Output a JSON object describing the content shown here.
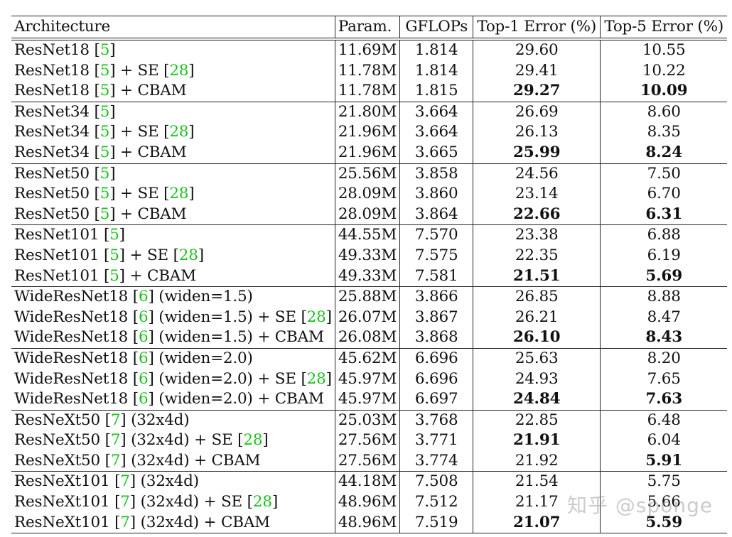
{
  "columns": [
    "Architecture",
    "Param.",
    "GFLOPs",
    "Top-1 Error (%)",
    "Top-5 Error (%)"
  ],
  "groups": [
    [
      {
        "arch": [
          "ResNet18 [",
          "5",
          "]"
        ],
        "param": "11.69M",
        "gflops": "1.814",
        "top1": "29.60",
        "top5": "10.55",
        "b1": false,
        "b5": false
      },
      {
        "arch": [
          "ResNet18 [",
          "5",
          "] + SE [",
          "28",
          "]"
        ],
        "param": "11.78M",
        "gflops": "1.814",
        "top1": "29.41",
        "top5": "10.22",
        "b1": false,
        "b5": false
      },
      {
        "arch": [
          "ResNet18 [",
          "5",
          "] + CBAM"
        ],
        "param": "11.78M",
        "gflops": "1.815",
        "top1": "29.27",
        "top5": "10.09",
        "b1": true,
        "b5": true
      }
    ],
    [
      {
        "arch": [
          "ResNet34 [",
          "5",
          "]"
        ],
        "param": "21.80M",
        "gflops": "3.664",
        "top1": "26.69",
        "top5": "8.60",
        "b1": false,
        "b5": false
      },
      {
        "arch": [
          "ResNet34 [",
          "5",
          "] + SE [",
          "28",
          "]"
        ],
        "param": "21.96M",
        "gflops": "3.664",
        "top1": "26.13",
        "top5": "8.35",
        "b1": false,
        "b5": false
      },
      {
        "arch": [
          "ResNet34 [",
          "5",
          "] + CBAM"
        ],
        "param": "21.96M",
        "gflops": "3.665",
        "top1": "25.99",
        "top5": "8.24",
        "b1": true,
        "b5": true
      }
    ],
    [
      {
        "arch": [
          "ResNet50 [",
          "5",
          "]"
        ],
        "param": "25.56M",
        "gflops": "3.858",
        "top1": "24.56",
        "top5": "7.50",
        "b1": false,
        "b5": false
      },
      {
        "arch": [
          "ResNet50 [",
          "5",
          "] + SE [",
          "28",
          "]"
        ],
        "param": "28.09M",
        "gflops": "3.860",
        "top1": "23.14",
        "top5": "6.70",
        "b1": false,
        "b5": false
      },
      {
        "arch": [
          "ResNet50 [",
          "5",
          "] + CBAM"
        ],
        "param": "28.09M",
        "gflops": "3.864",
        "top1": "22.66",
        "top5": "6.31",
        "b1": true,
        "b5": true
      }
    ],
    [
      {
        "arch": [
          "ResNet101 [",
          "5",
          "]"
        ],
        "param": "44.55M",
        "gflops": "7.570",
        "top1": "23.38",
        "top5": "6.88",
        "b1": false,
        "b5": false
      },
      {
        "arch": [
          "ResNet101 [",
          "5",
          "] + SE [",
          "28",
          "]"
        ],
        "param": "49.33M",
        "gflops": "7.575",
        "top1": "22.35",
        "top5": "6.19",
        "b1": false,
        "b5": false
      },
      {
        "arch": [
          "ResNet101 [",
          "5",
          "] + CBAM"
        ],
        "param": "49.33M",
        "gflops": "7.581",
        "top1": "21.51",
        "top5": "5.69",
        "b1": true,
        "b5": true
      }
    ],
    [
      {
        "arch": [
          "WideResNet18 [",
          "6",
          "] (widen=1.5)"
        ],
        "param": "25.88M",
        "gflops": "3.866",
        "top1": "26.85",
        "top5": "8.88",
        "b1": false,
        "b5": false
      },
      {
        "arch": [
          "WideResNet18 [",
          "6",
          "] (widen=1.5) + SE [",
          "28",
          "]"
        ],
        "param": "26.07M",
        "gflops": "3.867",
        "top1": "26.21",
        "top5": "8.47",
        "b1": false,
        "b5": false
      },
      {
        "arch": [
          "WideResNet18 [",
          "6",
          "] (widen=1.5) + CBAM"
        ],
        "param": "26.08M",
        "gflops": "3.868",
        "top1": "26.10",
        "top5": "8.43",
        "b1": true,
        "b5": true
      }
    ],
    [
      {
        "arch": [
          "WideResNet18 [",
          "6",
          "] (widen=2.0)"
        ],
        "param": "45.62M",
        "gflops": "6.696",
        "top1": "25.63",
        "top5": "8.20",
        "b1": false,
        "b5": false
      },
      {
        "arch": [
          "WideResNet18 [",
          "6",
          "] (widen=2.0) + SE [",
          "28",
          "]"
        ],
        "param": "45.97M",
        "gflops": "6.696",
        "top1": "24.93",
        "top5": "7.65",
        "b1": false,
        "b5": false
      },
      {
        "arch": [
          "WideResNet18 [",
          "6",
          "] (widen=2.0) + CBAM"
        ],
        "param": "45.97M",
        "gflops": "6.697",
        "top1": "24.84",
        "top5": "7.63",
        "b1": true,
        "b5": true
      }
    ],
    [
      {
        "arch": [
          "ResNeXt50 [",
          "7",
          "] (32x4d)"
        ],
        "param": "25.03M",
        "gflops": "3.768",
        "top1": "22.85",
        "top5": "6.48",
        "b1": false,
        "b5": false
      },
      {
        "arch": [
          "ResNeXt50 [",
          "7",
          "] (32x4d) + SE [",
          "28",
          "]"
        ],
        "param": "27.56M",
        "gflops": "3.771",
        "top1": "21.91",
        "top5": "6.04",
        "b1": true,
        "b5": false
      },
      {
        "arch": [
          "ResNeXt50 [",
          "7",
          "] (32x4d) + CBAM"
        ],
        "param": "27.56M",
        "gflops": "3.774",
        "top1": "21.92",
        "top5": "5.91",
        "b1": false,
        "b5": true
      }
    ],
    [
      {
        "arch": [
          "ResNeXt101 [",
          "7",
          "] (32x4d)"
        ],
        "param": "44.18M",
        "gflops": "7.508",
        "top1": "21.54",
        "top5": "5.75",
        "b1": false,
        "b5": false
      },
      {
        "arch": [
          "ResNeXt101 [",
          "7",
          "] (32x4d) + SE [",
          "28",
          "]"
        ],
        "param": "48.96M",
        "gflops": "7.512",
        "top1": "21.17",
        "top5": "5.66",
        "b1": false,
        "b5": false
      },
      {
        "arch": [
          "ResNeXt101 [",
          "7",
          "] (32x4d) + CBAM"
        ],
        "param": "48.96M",
        "gflops": "7.519",
        "top1": "21.07",
        "top5": "5.59",
        "b1": true,
        "b5": true
      }
    ]
  ],
  "watermark": "知乎 @sponge",
  "colors": {
    "reference_link": "#19c21b",
    "text": "#111111",
    "rule": "#222222"
  }
}
